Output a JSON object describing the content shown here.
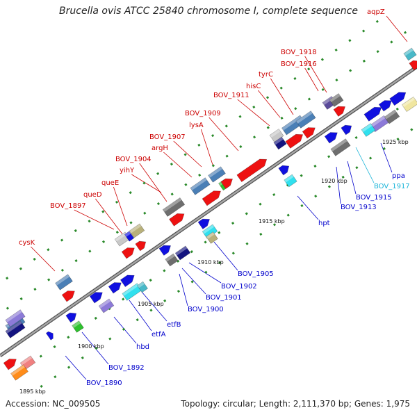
{
  "title": "Brucella ovis ATCC 25840 chromosome I, complete sequence",
  "accession": "Accession: NC_009505",
  "stats": "Topology: circular; Length: 2,111,370 bp; Genes: 1,975",
  "colors": {
    "backbone": "#808080",
    "forward_label": "#cc0000",
    "reverse_label": "#0000cc",
    "light_blue_label": "#18b4d8",
    "tick": "#2a8a2a"
  },
  "kbp_labels": [
    "1895 kbp",
    "1900 kbp",
    "1905 kbp",
    "1910 kbp",
    "1915 kbp",
    "1920 kbp",
    "1925 kbp"
  ],
  "forward_genes": [
    "cysK",
    "BOV_1897",
    "queD",
    "queE",
    "yihY",
    "BOV_1904",
    "argH",
    "BOV_1907",
    "lysA",
    "BOV_1909",
    "BOV_1911",
    "hisC",
    "tyrC",
    "BOV_1916",
    "BOV_1918",
    "aqpZ"
  ],
  "reverse_genes": [
    "BOV_1890",
    "BOV_1892",
    "hbd",
    "etfA",
    "etfB",
    "BOV_1900",
    "BOV_1901",
    "BOV_1902",
    "BOV_1905",
    "hpt",
    "BOV_1913",
    "BOV_1915",
    "BOV_1917",
    "ppa"
  ]
}
